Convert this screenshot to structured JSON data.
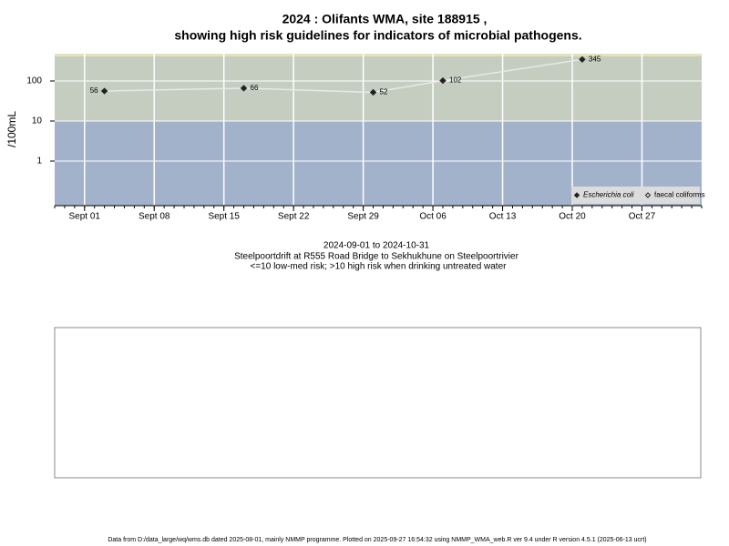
{
  "chart_data": {
    "type": "line",
    "title": [
      "2024 : Olifants WMA, site 188915 ,",
      "showing high risk guidelines for indicators of microbial pathogens."
    ],
    "y_label": "/100mL",
    "subtitle": [
      "2024-09-01 to 2024-10-31",
      "Steelpoortdrift at R555 Road Bridge to Sekhukhune on Steelpoortrivier",
      "<=10 low-med risk; >10 high risk when drinking untreated water"
    ],
    "footer": "Data from D:/data_large/wq/wms.db dated 2025-08-01, mainly NMMP programme. Plotted on 2025-09-27 16:54:32 using NMMP_WMA_web.R ver 9.4 under R version 4.5.1 (2025-06-13 ucrt)",
    "x": [
      "09-03",
      "09-17",
      "09-30",
      "10-07",
      "10-21"
    ],
    "series": [
      {
        "name": "Escherichia coli",
        "color": "#222222",
        "line_color": "#e8e8e8",
        "marker": "filled",
        "values": [
          56,
          66,
          52,
          102,
          345
        ]
      },
      {
        "name": "faecal coliforms",
        "color": "#222222",
        "marker": "open",
        "values": [
          null,
          null,
          null,
          null,
          null
        ]
      }
    ],
    "xlim": [
      "08-29",
      "11-02"
    ],
    "xticks": [
      {
        "value": "09-01",
        "label": "Sept 01"
      },
      {
        "value": "09-08",
        "label": "Sept 08"
      },
      {
        "value": "09-15",
        "label": "Sept 15"
      },
      {
        "value": "09-22",
        "label": "Sept 22"
      },
      {
        "value": "09-29",
        "label": "Sept 29"
      },
      {
        "value": "10-06",
        "label": "Oct 06"
      },
      {
        "value": "10-13",
        "label": "Oct 13"
      },
      {
        "value": "10-20",
        "label": "Oct 20"
      },
      {
        "value": "10-27",
        "label": "Oct 27"
      }
    ],
    "ylim": [
      0.077,
      480
    ],
    "yticks": [
      1,
      10,
      100
    ],
    "log_y": true,
    "grid": true,
    "risk_threshold": 10,
    "high_risk_color": "#c5cdc0",
    "low_risk_color": "#a2b2cb",
    "legend": "bottom-right"
  }
}
